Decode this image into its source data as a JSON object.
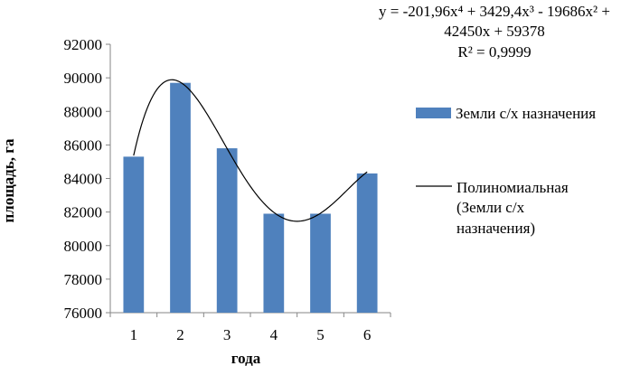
{
  "chart_data": {
    "type": "bar",
    "categories": [
      "1",
      "2",
      "3",
      "4",
      "5",
      "6"
    ],
    "series": [
      {
        "name": "Земли с/х назначения",
        "values": [
          85300,
          89700,
          85800,
          81900,
          81900,
          84300
        ],
        "color": "#4f81bd"
      }
    ],
    "trendline": {
      "name_lines": [
        "Полиномиальная",
        "(Земли с/х",
        "назначения)"
      ],
      "type": "polynomial",
      "order": 4,
      "coefficients": [
        -201.96,
        3429.4,
        -19686,
        42450,
        59378
      ],
      "equation_lines": [
        "y = -201,96x⁴ + 3429,4x³ - 19686x² +",
        "42450x + 59378",
        "R² = 0,9999"
      ],
      "color": "#000000"
    },
    "xlabel": "года",
    "ylabel": "площадь, га",
    "ylim": [
      76000,
      92000
    ],
    "yticks": [
      "76000",
      "78000",
      "80000",
      "82000",
      "84000",
      "86000",
      "88000",
      "90000",
      "92000"
    ],
    "grid": false,
    "legend_position": "right"
  }
}
